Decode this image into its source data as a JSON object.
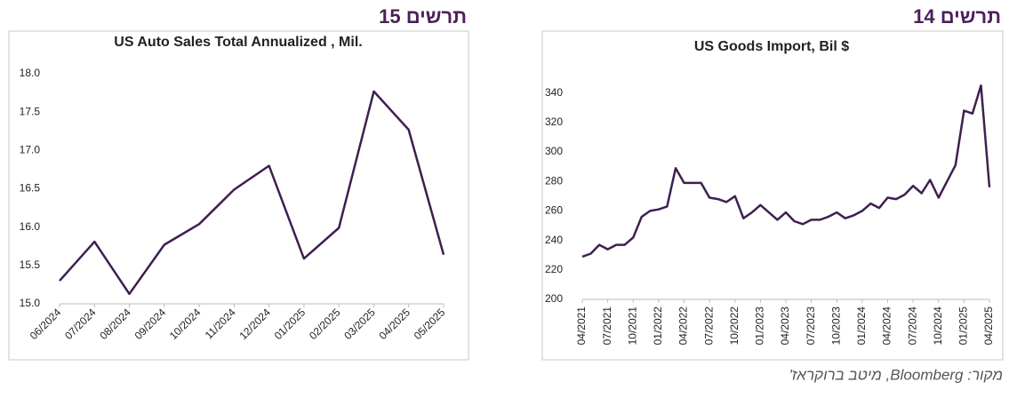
{
  "chart_data": [
    {
      "type": "line",
      "figure_label": "תרשים 15",
      "title": "US Auto Sales Total Annualized , Mil.",
      "categories": [
        "06/2024",
        "07/2024",
        "08/2024",
        "09/2024",
        "10/2024",
        "11/2024",
        "12/2024",
        "01/2025",
        "02/2025",
        "03/2025",
        "04/2025",
        "05/2025"
      ],
      "values": [
        15.3,
        15.81,
        15.13,
        15.77,
        16.04,
        16.49,
        16.8,
        15.59,
        15.99,
        17.77,
        17.27,
        15.64
      ],
      "color": "#3f1f4f",
      "ylim": [
        15,
        18
      ],
      "yticks": [
        {
          "value": 15,
          "label": "15.0"
        },
        15.5,
        {
          "value": 16,
          "label": "16.0"
        },
        16.5,
        {
          "value": 17,
          "label": "17.0"
        },
        17.5,
        {
          "value": 18,
          "label": "18.0"
        }
      ]
    },
    {
      "type": "line",
      "figure_label": "תרשים 14",
      "title": "US Goods Import, Bil $",
      "categories": [
        "04/2021",
        null,
        null,
        "07/2021",
        null,
        null,
        "10/2021",
        null,
        null,
        "01/2022",
        null,
        null,
        "04/2022",
        null,
        null,
        "07/2022",
        null,
        null,
        "10/2022",
        null,
        null,
        "01/2023",
        null,
        null,
        "04/2023",
        null,
        null,
        "07/2023",
        null,
        null,
        "10/2023",
        null,
        null,
        "01/2024",
        null,
        null,
        "04/2024",
        null,
        null,
        "07/2024",
        null,
        null,
        "10/2024",
        null,
        null,
        "01/2025",
        null,
        null,
        "04/2025"
      ],
      "values": [
        229,
        231,
        237,
        234,
        237,
        237,
        242,
        256,
        260,
        261,
        263,
        289,
        279,
        279,
        279,
        269,
        268,
        266,
        270,
        255,
        259,
        264,
        259,
        254,
        259,
        253,
        251,
        254,
        254,
        256,
        259,
        255,
        257,
        260,
        265,
        262,
        269,
        268,
        271,
        277,
        272,
        281,
        269,
        280,
        291,
        328,
        326,
        345,
        276
      ],
      "color": "#3f1f4f",
      "ylim": [
        200,
        350
      ],
      "yticks": [
        200,
        220,
        240,
        260,
        280,
        300,
        320,
        340
      ]
    }
  ],
  "source": "מקור: Bloomberg, מיטב ברוקראז'"
}
